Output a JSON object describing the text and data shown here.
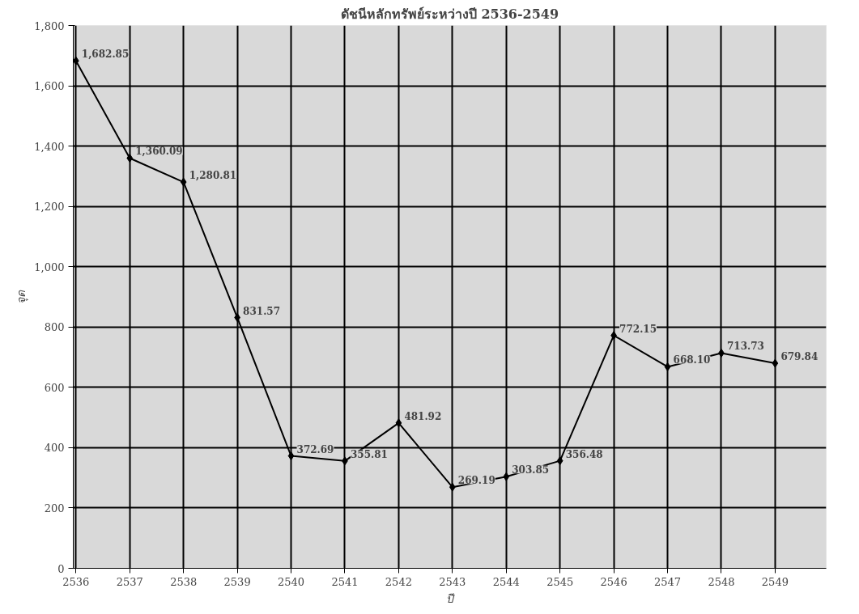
{
  "chart_data": {
    "type": "line",
    "title": "ดัชนีหลักทรัพย์ระหว่างปี 2536-2549",
    "xlabel": "ปี",
    "ylabel": "จุด",
    "categories": [
      "2536",
      "2537",
      "2538",
      "2539",
      "2540",
      "2541",
      "2542",
      "2543",
      "2544",
      "2545",
      "2546",
      "2547",
      "2548",
      "2549"
    ],
    "series": [
      {
        "color": "#000000",
        "values": [
          1682.85,
          1360.09,
          1280.81,
          831.57,
          372.69,
          355.81,
          481.92,
          269.19,
          303.85,
          356.48,
          772.15,
          668.1,
          713.73,
          679.84
        ]
      }
    ],
    "ylim": [
      0,
      1800
    ],
    "yticks": [
      0,
      200,
      400,
      600,
      800,
      {
        "value": 1000,
        "label": "1,000"
      },
      {
        "value": 1200,
        "label": "1,200"
      },
      {
        "value": 1400,
        "label": "1,400"
      },
      {
        "value": 1600,
        "label": "1,600"
      },
      {
        "value": 1800,
        "label": "1,800"
      }
    ],
    "value_labels": [
      "1,682.85",
      "1,360.09",
      "1,280.81",
      "831.57",
      "372.69",
      "355.81",
      "481.92",
      "269.19",
      "303.85",
      "356.48",
      "772.15",
      "668.10",
      "713.73",
      "679.84"
    ],
    "grid": true,
    "marker": "diamond",
    "line_style": "solid"
  }
}
